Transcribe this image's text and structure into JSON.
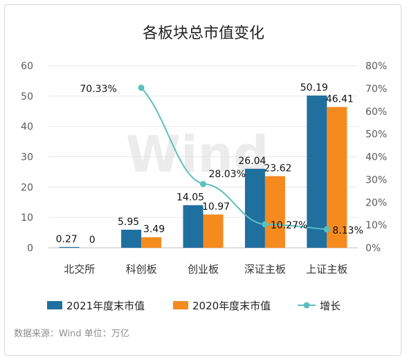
{
  "chart_data": {
    "type": "bar",
    "title": "各板块总市值变化",
    "categories": [
      "北交所",
      "科创板",
      "创业板",
      "深证主板",
      "上证主板"
    ],
    "series": [
      {
        "name": "2021年度末市值",
        "type": "bar",
        "axis": "left",
        "color": "#1f6f9f",
        "values": [
          0.27,
          5.95,
          14.05,
          26.04,
          50.19
        ],
        "labels": [
          "0.27",
          "5.95",
          "14.05",
          "26.04",
          "50.19"
        ]
      },
      {
        "name": "2020年度末市值",
        "type": "bar",
        "axis": "left",
        "color": "#f58a1f",
        "values": [
          0,
          3.49,
          10.97,
          23.62,
          46.41
        ],
        "labels": [
          "0",
          "3.49",
          "10.97",
          "23.62",
          "46.41"
        ]
      },
      {
        "name": "增长",
        "type": "line",
        "axis": "right",
        "color": "#5bbfbf",
        "values_pct": [
          null,
          70.33,
          28.03,
          10.27,
          8.13
        ],
        "labels": [
          "",
          "70.33%",
          "28.03%",
          "10.27%",
          "8.13%"
        ]
      }
    ],
    "y_left": {
      "min": 0,
      "max": 60,
      "ticks": [
        "0",
        "10",
        "20",
        "30",
        "40",
        "50",
        "60"
      ]
    },
    "y_right": {
      "min": 0,
      "max": 80,
      "ticks": [
        "0%",
        "10%",
        "20%",
        "30%",
        "40%",
        "50%",
        "60%",
        "70%",
        "80%"
      ]
    },
    "grid": true,
    "legend": "bottom"
  },
  "watermark": "Wind",
  "source_note": "数据来源：Wind   单位：万亿"
}
